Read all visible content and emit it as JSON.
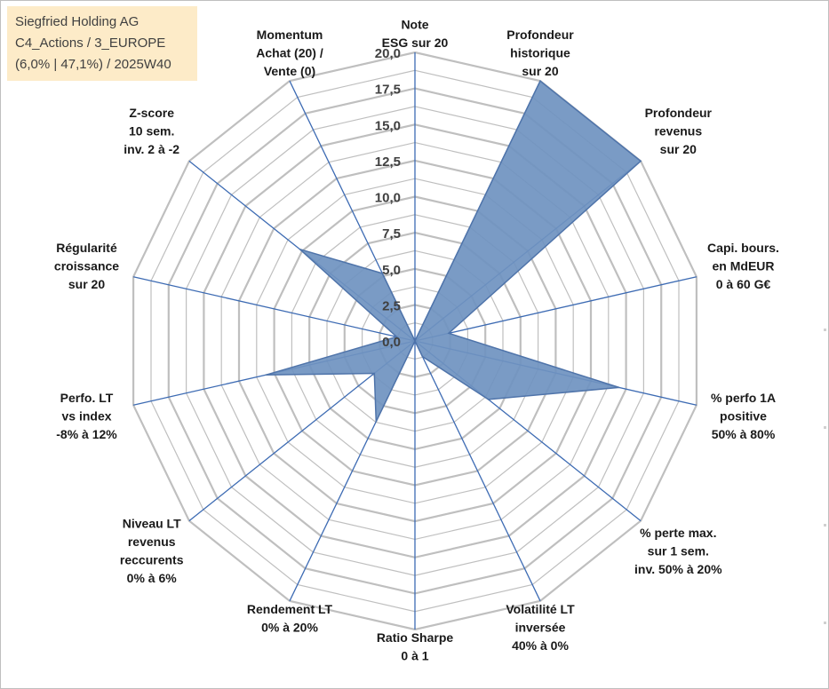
{
  "title_box": {
    "line1": "Siegfried Holding AG",
    "line2": "C4_Actions / 3_EUROPE",
    "line3": "(6,0% | 47,1%) / 2025W40"
  },
  "chart_data": {
    "type": "radar",
    "title": "Siegfried Holding AG",
    "range": [
      0,
      20
    ],
    "tick_step": 2.5,
    "grid_step": 1.25,
    "tick_labels": [
      "0,0",
      "2,5",
      "5,0",
      "7,5",
      "10,0",
      "12,5",
      "15,0",
      "17,5",
      "20,0"
    ],
    "axes": [
      {
        "label": [
          "Note",
          "ESG sur 20"
        ],
        "value": 0
      },
      {
        "label": [
          "Profondeur",
          "historique",
          "sur 20"
        ],
        "value": 20
      },
      {
        "label": [
          "Profondeur",
          "revenus",
          "sur 20"
        ],
        "value": 20
      },
      {
        "label": [
          "Capi. bours.",
          "en MdEUR",
          "0 à 60 G€"
        ],
        "value": 2.4
      },
      {
        "label": [
          "% perfo 1A",
          "positive",
          "50% à 80%"
        ],
        "value": 14.5
      },
      {
        "label": [
          "% perte max.",
          "sur 1 sem.",
          "inv. 50% à 20%"
        ],
        "value": 6.5
      },
      {
        "label": [
          "Volatilité LT",
          "inversée",
          "40% à 0%"
        ],
        "value": 1.2
      },
      {
        "label": [
          "Ratio Sharpe",
          "0 à 1"
        ],
        "value": 0
      },
      {
        "label": [
          "Rendement LT",
          "0% à 20%"
        ],
        "value": 6.2
      },
      {
        "label": [
          "Niveau LT",
          "revenus",
          "reccurents",
          "0% à 6%"
        ],
        "value": 3.6
      },
      {
        "label": [
          "Perfo. LT",
          "vs index",
          "-8% à 12%"
        ],
        "value": 10.6
      },
      {
        "label": [
          "Régularité",
          "croissance",
          "sur 20"
        ],
        "value": 1.3
      },
      {
        "label": [
          "Z-score",
          "10 sem.",
          "inv. 2 à -2"
        ],
        "value": 10.2
      },
      {
        "label": [
          "Momentum",
          "Achat (20) /",
          "Vente (0)"
        ],
        "value": 5.2
      }
    ],
    "series_color": "#4f74aa",
    "fill_color": "#6f92c0",
    "grid_color": "#bfbfbf",
    "spoke_color": "#3d6bb3"
  }
}
